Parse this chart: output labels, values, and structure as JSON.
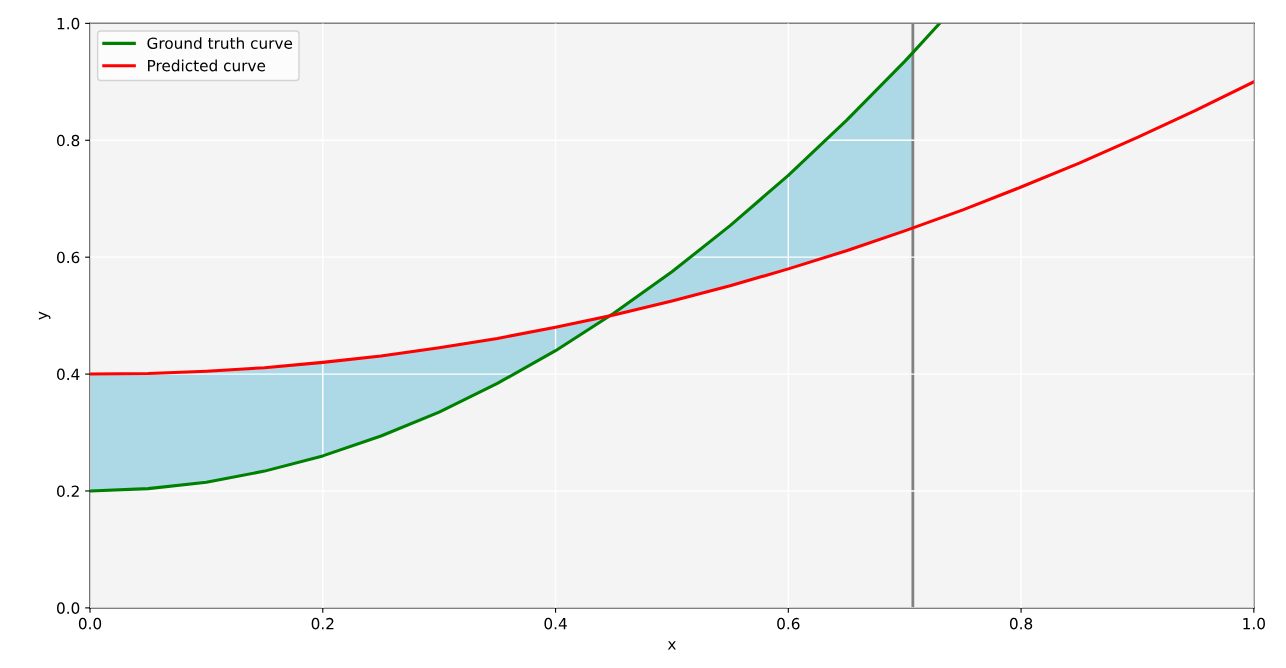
{
  "chart_data": {
    "type": "line",
    "xlabel": "x",
    "ylabel": "y",
    "xlim": [
      0,
      1
    ],
    "ylim": [
      0,
      1
    ],
    "xticks": [
      {
        "value": 0,
        "label": "0.0"
      },
      {
        "value": 0.2,
        "label": "0.2"
      },
      {
        "value": 0.4,
        "label": "0.4"
      },
      {
        "value": 0.6,
        "label": "0.6"
      },
      {
        "value": 0.8,
        "label": "0.8"
      },
      {
        "value": 1,
        "label": "1.0"
      }
    ],
    "yticks": [
      {
        "value": 0,
        "label": "0.0"
      },
      {
        "value": 0.2,
        "label": "0.2"
      },
      {
        "value": 0.4,
        "label": "0.4"
      },
      {
        "value": 0.6,
        "label": "0.6"
      },
      {
        "value": 0.8,
        "label": "0.8"
      },
      {
        "value": 1,
        "label": "1.0"
      }
    ],
    "grid": true,
    "legend": "top left",
    "series": [
      {
        "name": "Ground truth curve",
        "color": "#008000",
        "x": [
          0,
          0.05,
          0.1,
          0.15,
          0.2,
          0.25,
          0.3,
          0.35,
          0.4,
          0.45,
          0.5,
          0.55,
          0.6,
          0.65,
          0.7,
          0.707,
          0.73
        ],
        "values": [
          0.2,
          0.204,
          0.215,
          0.234,
          0.26,
          0.294,
          0.335,
          0.384,
          0.44,
          0.504,
          0.575,
          0.654,
          0.74,
          0.834,
          0.935,
          0.95,
          1.0
        ],
        "lower": [
          0.2,
          0.204,
          0.215,
          0.234,
          0.26,
          0.294,
          0.335,
          0.384,
          0.44,
          0.501,
          0.525,
          0.551,
          0.58,
          0.611,
          0.645,
          0.65,
          null
        ],
        "upper": [
          0.4,
          0.401,
          0.405,
          0.411,
          0.42,
          0.431,
          0.445,
          0.461,
          0.48,
          0.504,
          0.575,
          0.654,
          0.74,
          0.834,
          0.935,
          0.95,
          null
        ]
      },
      {
        "name": "Predicted curve",
        "color": "#ff0000",
        "x": [
          0,
          0.05,
          0.1,
          0.15,
          0.2,
          0.25,
          0.3,
          0.35,
          0.4,
          0.45,
          0.5,
          0.55,
          0.6,
          0.65,
          0.7,
          0.75,
          0.8,
          0.85,
          0.9,
          0.95,
          1
        ],
        "values": [
          0.4,
          0.401,
          0.405,
          0.411,
          0.42,
          0.431,
          0.445,
          0.461,
          0.48,
          0.501,
          0.525,
          0.551,
          0.58,
          0.611,
          0.645,
          0.681,
          0.72,
          0.761,
          0.805,
          0.851,
          0.9
        ]
      }
    ],
    "ref_lines": [
      {
        "axis": "x",
        "value": 0.707,
        "color": "#808080"
      }
    ]
  }
}
